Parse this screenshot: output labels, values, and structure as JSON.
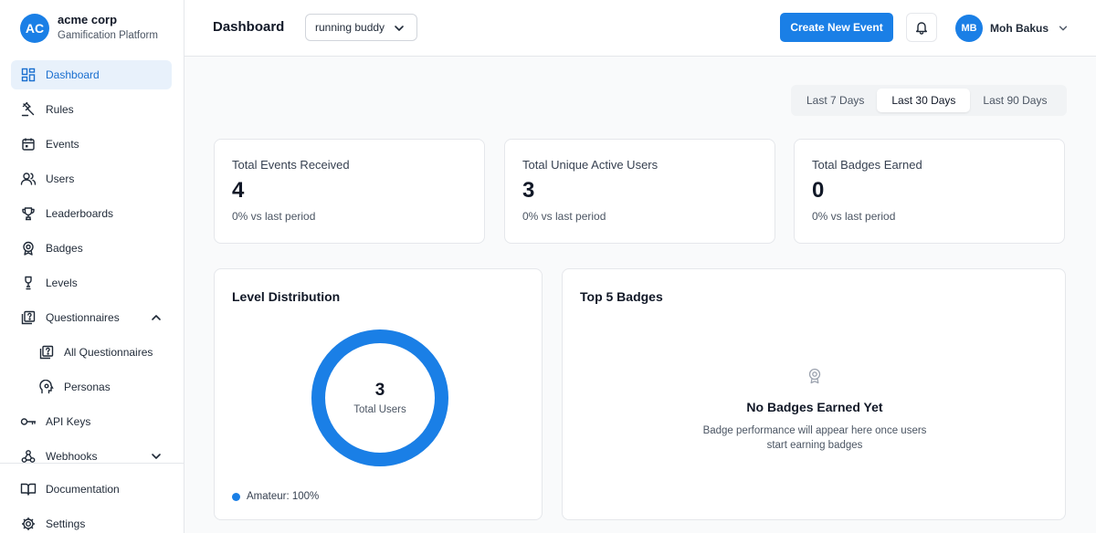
{
  "brand": {
    "initials": "AC",
    "name": "acme corp",
    "subtitle": "Gamification Platform"
  },
  "sidebar": {
    "items": [
      {
        "label": "Dashboard",
        "icon": "dashboard-icon",
        "active": true
      },
      {
        "label": "Rules",
        "icon": "gavel-icon"
      },
      {
        "label": "Events",
        "icon": "calendar-icon"
      },
      {
        "label": "Users",
        "icon": "users-icon"
      },
      {
        "label": "Leaderboards",
        "icon": "trophy-icon"
      },
      {
        "label": "Badges",
        "icon": "badge-icon"
      },
      {
        "label": "Levels",
        "icon": "levels-icon"
      },
      {
        "label": "Questionnaires",
        "icon": "questionnaire-icon",
        "expanded": true
      },
      {
        "label": "All Questionnaires",
        "icon": "questionnaire-icon",
        "sub": true
      },
      {
        "label": "Personas",
        "icon": "persona-icon",
        "sub": true
      },
      {
        "label": "API Keys",
        "icon": "key-icon"
      },
      {
        "label": "Webhooks",
        "icon": "webhook-icon",
        "expanded": false
      }
    ],
    "bottom": [
      {
        "label": "Documentation",
        "icon": "book-icon"
      },
      {
        "label": "Settings",
        "icon": "gear-icon"
      }
    ]
  },
  "header": {
    "title": "Dashboard",
    "project": "running buddy",
    "create_label": "Create New Event",
    "user": {
      "initials": "MB",
      "name": "Moh Bakus"
    }
  },
  "range": {
    "options": [
      "Last 7 Days",
      "Last 30 Days",
      "Last 90 Days"
    ],
    "selected": "Last 30 Days"
  },
  "stats": [
    {
      "label": "Total Events Received",
      "value": "4",
      "delta": "0% vs last period"
    },
    {
      "label": "Total Unique Active Users",
      "value": "3",
      "delta": "0% vs last period"
    },
    {
      "label": "Total Badges Earned",
      "value": "0",
      "delta": "0% vs last period"
    }
  ],
  "level_distribution": {
    "title": "Level Distribution",
    "total": "3",
    "total_label": "Total Users",
    "legend": [
      {
        "label": "Amateur: 100%",
        "fraction": 1.0,
        "color": "#1a7fe6"
      }
    ]
  },
  "top_badges": {
    "title": "Top 5 Badges",
    "empty_title": "No Badges Earned Yet",
    "empty_desc": "Badge performance will appear here once users start earning badges"
  },
  "colors": {
    "accent": "#1a7fe6",
    "active_bg": "#e8f1fb"
  }
}
